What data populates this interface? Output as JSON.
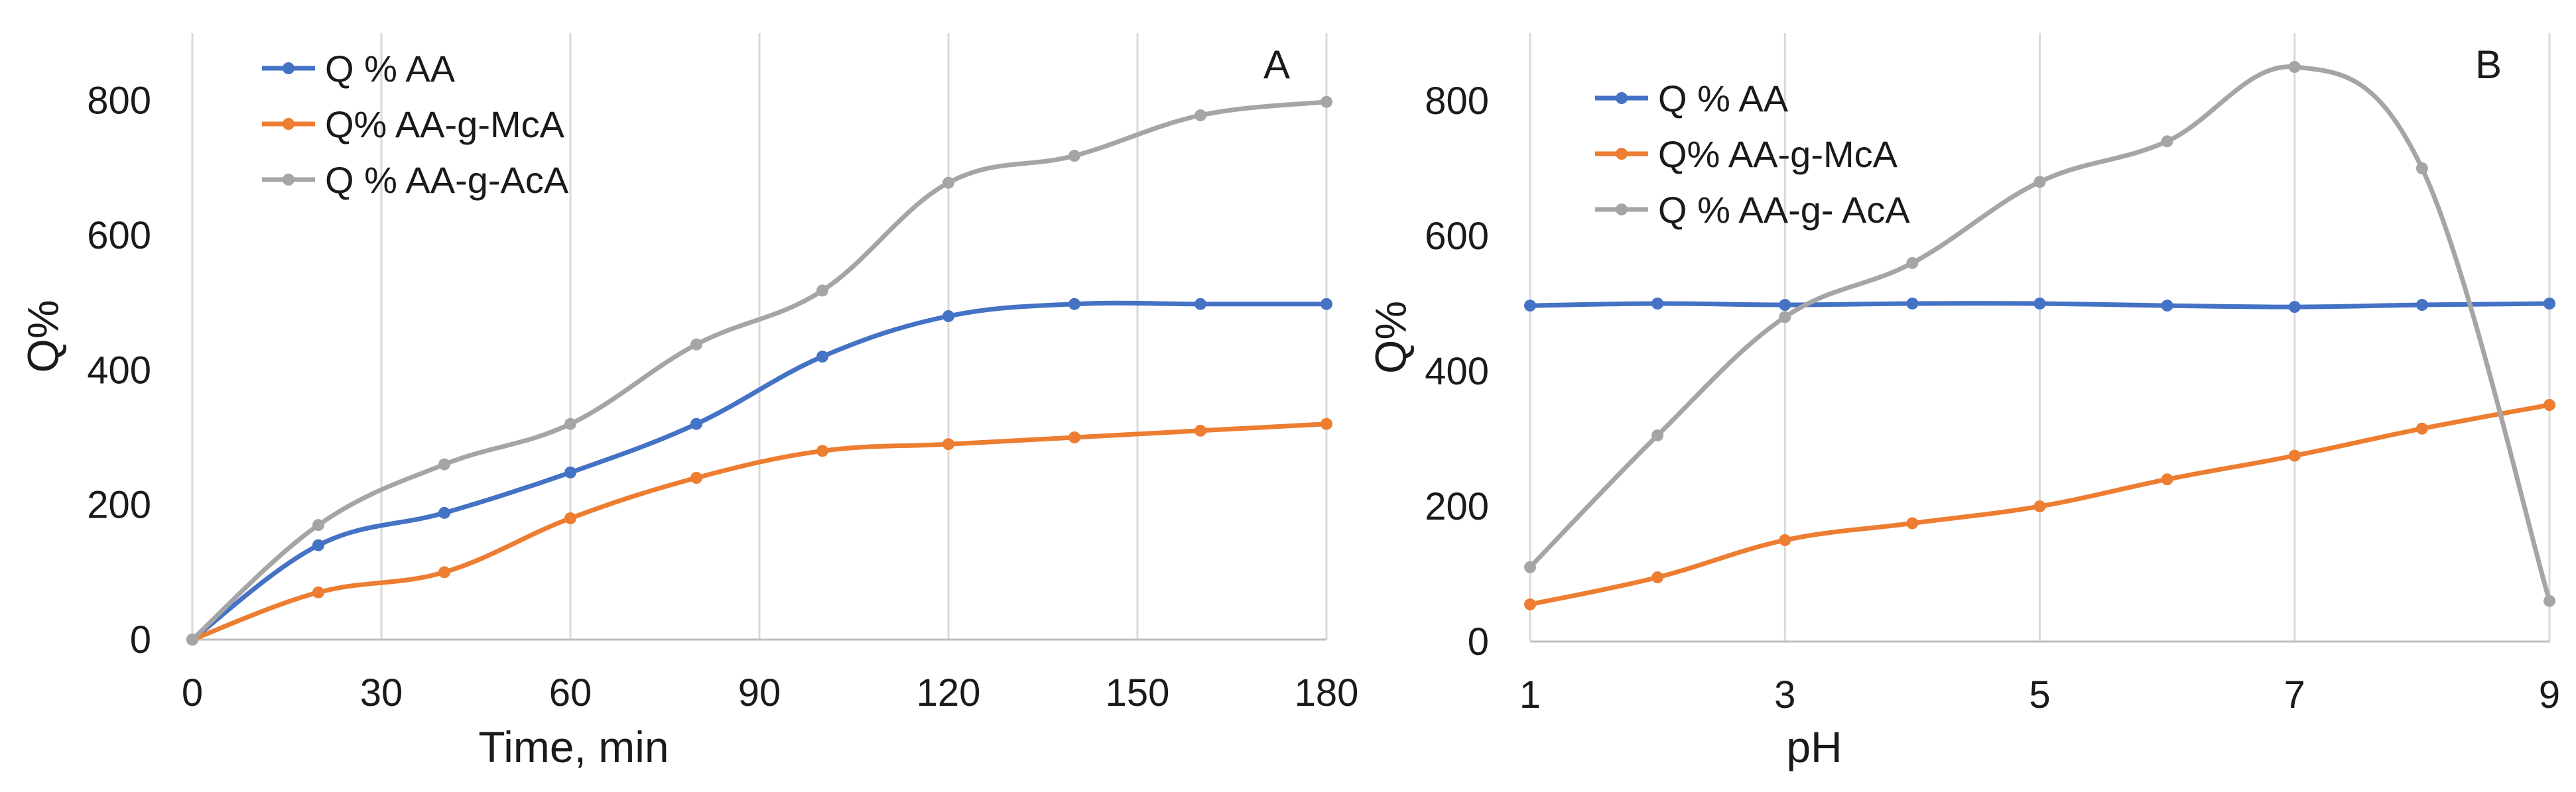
{
  "figure": {
    "panels": [
      "A",
      "B"
    ]
  },
  "chart_data": [
    {
      "type": "line",
      "panel_label": "A",
      "xlabel": "Time, min",
      "ylabel": "Q%",
      "xlim": [
        0,
        180
      ],
      "ylim": [
        0,
        900
      ],
      "xticks": [
        0,
        30,
        60,
        90,
        120,
        150,
        180
      ],
      "yticks": [
        0,
        200,
        400,
        600,
        800
      ],
      "grid": "vertical",
      "legend_position": "top-left",
      "x": [
        0,
        20,
        40,
        60,
        80,
        100,
        120,
        140,
        160,
        180
      ],
      "series": [
        {
          "name": "Q % AA",
          "color": "#4472C4",
          "values": [
            0,
            140,
            188,
            248,
            320,
            420,
            480,
            498,
            498,
            498
          ]
        },
        {
          "name": "Q% AA-g-McA",
          "color": "#ED7D31",
          "values": [
            0,
            70,
            100,
            180,
            240,
            280,
            290,
            300,
            310,
            320
          ]
        },
        {
          "name": "Q % AA-g-AcA",
          "color": "#A5A5A5",
          "values": [
            0,
            170,
            260,
            320,
            438,
            518,
            678,
            718,
            778,
            798
          ]
        }
      ]
    },
    {
      "type": "line",
      "panel_label": "B",
      "xlabel": "pH",
      "ylabel": "Q%",
      "xlim": [
        1,
        9
      ],
      "ylim": [
        0,
        900
      ],
      "xticks": [
        1,
        3,
        5,
        7,
        9
      ],
      "yticks": [
        0,
        200,
        400,
        600,
        800
      ],
      "grid": "vertical",
      "legend_position": "top-left",
      "x": [
        1,
        2,
        3,
        4,
        5,
        6,
        7,
        8,
        9
      ],
      "series": [
        {
          "name": "Q %  AA",
          "color": "#4472C4",
          "values": [
            497,
            500,
            498,
            500,
            500,
            497,
            495,
            498,
            500
          ]
        },
        {
          "name": "Q% AA-g-McA",
          "color": "#ED7D31",
          "values": [
            55,
            95,
            150,
            175,
            200,
            240,
            275,
            315,
            350
          ]
        },
        {
          "name": "Q % AA-g- AcA",
          "color": "#A5A5A5",
          "values": [
            110,
            305,
            480,
            560,
            680,
            740,
            850,
            700,
            60
          ]
        }
      ]
    }
  ]
}
